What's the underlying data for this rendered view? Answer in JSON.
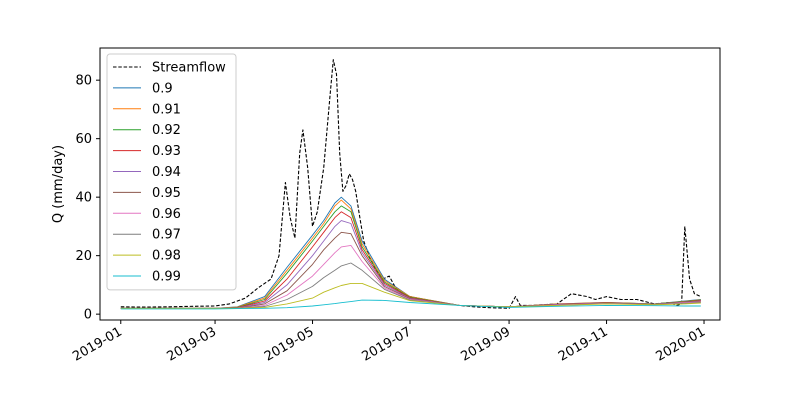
{
  "chart_data": {
    "type": "line",
    "title": "",
    "xlabel": "",
    "ylabel": "Q (mm/day)",
    "xlim": [
      "2018-12-19",
      "2020-01-11"
    ],
    "ylim": [
      -2,
      91
    ],
    "xticks": [
      "2019-01",
      "2019-03",
      "2019-05",
      "2019-07",
      "2019-09",
      "2019-11",
      "2020-01"
    ],
    "yticks": [
      0,
      20,
      40,
      60,
      80
    ],
    "grid": false,
    "legend_position": "upper-left",
    "colors": {
      "Streamflow": "#000000",
      "0.9": "#1f77b4",
      "0.91": "#ff7f0e",
      "0.92": "#2ca02c",
      "0.93": "#d62728",
      "0.94": "#9467bd",
      "0.95": "#8c564b",
      "0.96": "#e377c2",
      "0.97": "#7f7f7f",
      "0.98": "#bcbd22",
      "0.99": "#17becf"
    },
    "series": [
      {
        "name": "Streamflow",
        "style": "dashed",
        "x": [
          "2019-01-01",
          "2019-01-15",
          "2019-02-01",
          "2019-02-15",
          "2019-03-01",
          "2019-03-10",
          "2019-03-20",
          "2019-03-28",
          "2019-04-05",
          "2019-04-10",
          "2019-04-14",
          "2019-04-17",
          "2019-04-20",
          "2019-04-23",
          "2019-04-25",
          "2019-04-28",
          "2019-05-01",
          "2019-05-04",
          "2019-05-08",
          "2019-05-12",
          "2019-05-14",
          "2019-05-16",
          "2019-05-18",
          "2019-05-20",
          "2019-05-22",
          "2019-05-24",
          "2019-05-26",
          "2019-05-28",
          "2019-05-30",
          "2019-06-02",
          "2019-06-06",
          "2019-06-10",
          "2019-06-14",
          "2019-06-18",
          "2019-06-22",
          "2019-06-26",
          "2019-07-01",
          "2019-07-10",
          "2019-07-20",
          "2019-08-01",
          "2019-08-10",
          "2019-08-20",
          "2019-09-01",
          "2019-09-05",
          "2019-09-08",
          "2019-09-15",
          "2019-10-01",
          "2019-10-10",
          "2019-10-20",
          "2019-10-25",
          "2019-11-01",
          "2019-11-10",
          "2019-11-20",
          "2019-12-01",
          "2019-12-10",
          "2019-12-15",
          "2019-12-18",
          "2019-12-20",
          "2019-12-23",
          "2019-12-26",
          "2019-12-30"
        ],
        "y": [
          2.5,
          2.4,
          2.5,
          2.7,
          2.8,
          3.5,
          5.5,
          9,
          12,
          20,
          45,
          33,
          26,
          55,
          63,
          50,
          30,
          35,
          50,
          75,
          87,
          82,
          55,
          42,
          44,
          48,
          46,
          42,
          35,
          25,
          19,
          15,
          12,
          13,
          9,
          7,
          6,
          5,
          4,
          3,
          2.5,
          2.2,
          2,
          6,
          3,
          3,
          3.5,
          7,
          6,
          5,
          6,
          5,
          5,
          3.5,
          4,
          3,
          3.5,
          30,
          12,
          7,
          6
        ]
      },
      {
        "name": "0.9",
        "x": [
          "2019-01-01",
          "2019-03-01",
          "2019-03-15",
          "2019-04-01",
          "2019-04-15",
          "2019-05-01",
          "2019-05-08",
          "2019-05-15",
          "2019-05-19",
          "2019-05-25",
          "2019-06-01",
          "2019-06-15",
          "2019-07-01",
          "2019-08-01",
          "2019-09-01",
          "2019-10-01",
          "2019-11-01",
          "2019-12-01",
          "2019-12-20",
          "2019-12-30"
        ],
        "y": [
          2,
          2,
          2.5,
          6,
          16,
          27,
          32,
          38,
          40,
          37,
          25,
          12,
          6,
          3,
          2.5,
          3.5,
          4,
          3.5,
          4.5,
          5
        ]
      },
      {
        "name": "0.91",
        "x": [
          "2019-01-01",
          "2019-03-01",
          "2019-03-15",
          "2019-04-01",
          "2019-04-15",
          "2019-05-01",
          "2019-05-08",
          "2019-05-15",
          "2019-05-19",
          "2019-05-25",
          "2019-06-01",
          "2019-06-15",
          "2019-07-01",
          "2019-08-01",
          "2019-09-01",
          "2019-10-01",
          "2019-11-01",
          "2019-12-01",
          "2019-12-20",
          "2019-12-30"
        ],
        "y": [
          2,
          2,
          2.4,
          5.5,
          15,
          26,
          31,
          37,
          39,
          36,
          24,
          11.5,
          6,
          3,
          2.5,
          3.5,
          4,
          3.5,
          4.4,
          4.9
        ]
      },
      {
        "name": "0.92",
        "x": [
          "2019-01-01",
          "2019-03-01",
          "2019-03-15",
          "2019-04-01",
          "2019-04-15",
          "2019-05-01",
          "2019-05-08",
          "2019-05-15",
          "2019-05-19",
          "2019-05-25",
          "2019-06-01",
          "2019-06-15",
          "2019-07-01",
          "2019-08-01",
          "2019-09-01",
          "2019-10-01",
          "2019-11-01",
          "2019-12-01",
          "2019-12-20",
          "2019-12-30"
        ],
        "y": [
          2,
          2,
          2.3,
          5,
          14,
          25,
          30,
          35,
          37,
          35,
          23,
          11,
          5.8,
          3,
          2.5,
          3.4,
          3.9,
          3.5,
          4.3,
          4.8
        ]
      },
      {
        "name": "0.93",
        "x": [
          "2019-01-01",
          "2019-03-01",
          "2019-03-15",
          "2019-04-01",
          "2019-04-15",
          "2019-05-01",
          "2019-05-08",
          "2019-05-15",
          "2019-05-19",
          "2019-05-25",
          "2019-06-01",
          "2019-06-15",
          "2019-07-01",
          "2019-08-01",
          "2019-09-01",
          "2019-10-01",
          "2019-11-01",
          "2019-12-01",
          "2019-12-20",
          "2019-12-30"
        ],
        "y": [
          2,
          2,
          2.2,
          4.5,
          12,
          23,
          28,
          33,
          35,
          33,
          22,
          10.5,
          5.6,
          3,
          2.5,
          3.4,
          3.9,
          3.4,
          4.2,
          4.7
        ]
      },
      {
        "name": "0.94",
        "x": [
          "2019-01-01",
          "2019-03-01",
          "2019-03-15",
          "2019-04-01",
          "2019-04-15",
          "2019-05-01",
          "2019-05-08",
          "2019-05-15",
          "2019-05-19",
          "2019-05-25",
          "2019-06-01",
          "2019-06-15",
          "2019-07-01",
          "2019-08-01",
          "2019-09-01",
          "2019-10-01",
          "2019-11-01",
          "2019-12-01",
          "2019-12-20",
          "2019-12-30"
        ],
        "y": [
          2,
          2,
          2.1,
          4,
          10,
          20,
          25,
          30,
          32,
          31,
          21,
          10,
          5.4,
          3,
          2.5,
          3.3,
          3.8,
          3.4,
          4.1,
          4.5
        ]
      },
      {
        "name": "0.95",
        "x": [
          "2019-01-01",
          "2019-03-01",
          "2019-03-15",
          "2019-04-01",
          "2019-04-15",
          "2019-05-01",
          "2019-05-08",
          "2019-05-15",
          "2019-05-19",
          "2019-05-25",
          "2019-06-01",
          "2019-06-15",
          "2019-07-01",
          "2019-08-01",
          "2019-09-01",
          "2019-10-01",
          "2019-11-01",
          "2019-12-01",
          "2019-12-20",
          "2019-12-30"
        ],
        "y": [
          2,
          2,
          2,
          3.5,
          8,
          17,
          22,
          26,
          28,
          27.5,
          20,
          9.5,
          5.2,
          3,
          2.5,
          3.2,
          3.8,
          3.4,
          4,
          4.4
        ]
      },
      {
        "name": "0.96",
        "x": [
          "2019-01-01",
          "2019-03-01",
          "2019-03-15",
          "2019-04-01",
          "2019-04-15",
          "2019-05-01",
          "2019-05-08",
          "2019-05-15",
          "2019-05-19",
          "2019-05-25",
          "2019-06-01",
          "2019-06-15",
          "2019-07-01",
          "2019-08-01",
          "2019-09-01",
          "2019-10-01",
          "2019-11-01",
          "2019-12-01",
          "2019-12-20",
          "2019-12-30"
        ],
        "y": [
          2,
          2,
          2,
          3,
          6.5,
          13,
          17,
          21,
          23,
          23.5,
          18,
          9,
          5,
          3,
          2.5,
          3.1,
          3.7,
          3.3,
          3.9,
          4.2
        ]
      },
      {
        "name": "0.97",
        "x": [
          "2019-01-01",
          "2019-03-01",
          "2019-03-15",
          "2019-04-01",
          "2019-04-15",
          "2019-05-01",
          "2019-05-08",
          "2019-05-15",
          "2019-05-19",
          "2019-05-25",
          "2019-06-01",
          "2019-06-15",
          "2019-07-01",
          "2019-08-01",
          "2019-09-01",
          "2019-10-01",
          "2019-11-01",
          "2019-12-01",
          "2019-12-20",
          "2019-12-30"
        ],
        "y": [
          2,
          2,
          2,
          2.6,
          5,
          9.5,
          12.5,
          15,
          16.5,
          17.5,
          15,
          8.5,
          4.8,
          3,
          2.5,
          3,
          3.6,
          3.3,
          3.7,
          4
        ]
      },
      {
        "name": "0.98",
        "x": [
          "2019-01-01",
          "2019-03-01",
          "2019-03-15",
          "2019-04-01",
          "2019-04-15",
          "2019-05-01",
          "2019-05-08",
          "2019-05-15",
          "2019-05-19",
          "2019-05-25",
          "2019-06-01",
          "2019-06-15",
          "2019-07-01",
          "2019-08-01",
          "2019-09-01",
          "2019-10-01",
          "2019-11-01",
          "2019-12-01",
          "2019-12-20",
          "2019-12-30"
        ],
        "y": [
          2,
          2,
          2,
          2.3,
          3.5,
          5.5,
          7.5,
          9,
          9.8,
          10.5,
          10.5,
          7.5,
          4.6,
          3,
          2.5,
          3,
          3.5,
          3.2,
          3.5,
          3.8
        ]
      },
      {
        "name": "0.99",
        "x": [
          "2019-01-01",
          "2019-03-01",
          "2019-03-15",
          "2019-04-01",
          "2019-04-15",
          "2019-05-01",
          "2019-05-08",
          "2019-05-15",
          "2019-05-19",
          "2019-05-25",
          "2019-06-01",
          "2019-06-15",
          "2019-07-01",
          "2019-08-01",
          "2019-09-01",
          "2019-10-01",
          "2019-11-01",
          "2019-12-01",
          "2019-12-20",
          "2019-12-30"
        ],
        "y": [
          1.8,
          1.8,
          1.9,
          2,
          2.2,
          2.8,
          3.2,
          3.6,
          3.9,
          4.3,
          4.8,
          4.7,
          4,
          3,
          2.3,
          2.7,
          3,
          2.9,
          2.8,
          2.8
        ]
      }
    ]
  }
}
